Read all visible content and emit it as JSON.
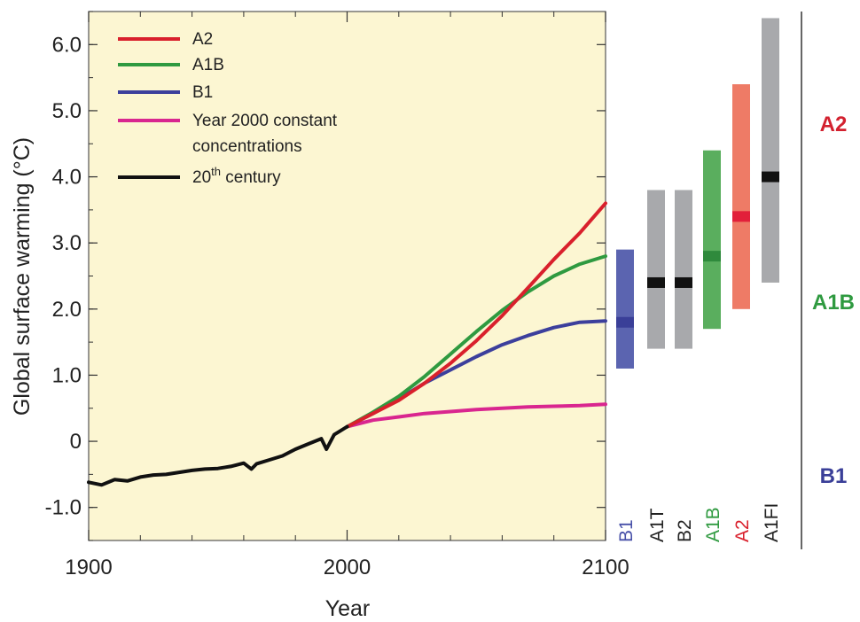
{
  "chart_data": {
    "type": "line",
    "xlabel": "Year",
    "ylabel": "Global surface warming (°C)",
    "xlim": [
      1900,
      2100
    ],
    "ylim": [
      -1.5,
      6.5
    ],
    "x_ticks": [
      1900,
      2000,
      2100
    ],
    "y_ticks": [
      {
        "value": 6.0,
        "label": "6.0"
      },
      {
        "value": 5.0,
        "label": "5.0"
      },
      {
        "value": 4.0,
        "label": "4.0"
      },
      {
        "value": 3.0,
        "label": "3.0"
      },
      {
        "value": 2.0,
        "label": "2.0"
      },
      {
        "value": 1.0,
        "label": "1.0"
      },
      {
        "value": 0,
        "label": "0"
      },
      {
        "value": -1.0,
        "label": "-1.0"
      }
    ],
    "series": [
      {
        "id": "a2",
        "name": "A2",
        "color": "#d9202c",
        "x": [
          2000,
          2010,
          2020,
          2030,
          2040,
          2050,
          2060,
          2070,
          2080,
          2090,
          2100
        ],
        "y": [
          0.22,
          0.42,
          0.62,
          0.88,
          1.18,
          1.52,
          1.9,
          2.32,
          2.75,
          3.15,
          3.6
        ]
      },
      {
        "id": "a1b",
        "name": "A1B",
        "color": "#2f9a40",
        "x": [
          2000,
          2010,
          2020,
          2030,
          2040,
          2050,
          2060,
          2070,
          2080,
          2090,
          2100
        ],
        "y": [
          0.22,
          0.44,
          0.68,
          0.98,
          1.32,
          1.66,
          1.98,
          2.26,
          2.5,
          2.68,
          2.8
        ]
      },
      {
        "id": "b1",
        "name": "B1",
        "color": "#3c3f9c",
        "x": [
          2000,
          2010,
          2020,
          2030,
          2040,
          2050,
          2060,
          2070,
          2080,
          2090,
          2100
        ],
        "y": [
          0.22,
          0.42,
          0.64,
          0.88,
          1.08,
          1.28,
          1.46,
          1.6,
          1.72,
          1.8,
          1.82
        ]
      },
      {
        "id": "constant",
        "name": "Year 2000 constant",
        "name_line2": "concentrations",
        "color": "#d9268f",
        "x": [
          2000,
          2010,
          2020,
          2030,
          2040,
          2050,
          2060,
          2070,
          2080,
          2090,
          2100
        ],
        "y": [
          0.22,
          0.32,
          0.37,
          0.42,
          0.45,
          0.48,
          0.5,
          0.52,
          0.53,
          0.54,
          0.56
        ]
      },
      {
        "id": "c20",
        "name": "20th century",
        "name_sup": "th",
        "color": "#111111",
        "x": [
          1900,
          1905,
          1910,
          1915,
          1920,
          1925,
          1930,
          1935,
          1940,
          1945,
          1950,
          1955,
          1960,
          1963,
          1965,
          1970,
          1975,
          1980,
          1985,
          1990,
          1992,
          1995,
          2000
        ],
        "y": [
          -0.62,
          -0.66,
          -0.58,
          -0.6,
          -0.54,
          -0.51,
          -0.5,
          -0.47,
          -0.44,
          -0.42,
          -0.41,
          -0.38,
          -0.33,
          -0.42,
          -0.34,
          -0.28,
          -0.22,
          -0.12,
          -0.04,
          0.04,
          -0.12,
          0.1,
          0.22
        ]
      }
    ],
    "scenario_ranges": [
      {
        "label": "B1",
        "low": 1.1,
        "high": 2.9,
        "best": 1.8,
        "bar_color": "#5b64b0",
        "best_color": "#3a3f98",
        "label_color": "#4750a8"
      },
      {
        "label": "A1T",
        "low": 1.4,
        "high": 3.8,
        "best": 2.4,
        "bar_color": "#a8a9ac",
        "best_color": "#111111",
        "label_color": "#222222"
      },
      {
        "label": "B2",
        "low": 1.4,
        "high": 3.8,
        "best": 2.4,
        "bar_color": "#a8a9ac",
        "best_color": "#111111",
        "label_color": "#222222"
      },
      {
        "label": "A1B",
        "low": 1.7,
        "high": 4.4,
        "best": 2.8,
        "bar_color": "#5aae5e",
        "best_color": "#2f8a3c",
        "label_color": "#2f9a40"
      },
      {
        "label": "A2",
        "low": 2.0,
        "high": 5.4,
        "best": 3.4,
        "bar_color": "#ee7b66",
        "best_color": "#e2203a",
        "label_color": "#d9202c"
      },
      {
        "label": "A1FI",
        "low": 2.4,
        "high": 6.4,
        "best": 4.0,
        "bar_color": "#a8a9ac",
        "best_color": "#111111",
        "label_color": "#222222"
      }
    ],
    "side_labels": [
      {
        "label": "A2",
        "color": "#d3212f"
      },
      {
        "label": "A1B",
        "color": "#2f9a40"
      },
      {
        "label": "B1",
        "color": "#3a3f98"
      }
    ],
    "background_color": "#fcf6d2"
  }
}
